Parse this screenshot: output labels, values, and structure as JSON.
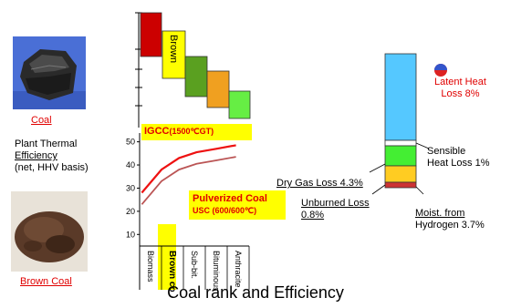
{
  "left_panel": {
    "coal_label": "Coal",
    "efficiency_label_lines": [
      "Plant Thermal",
      "Efficiency",
      "(net, HHV basis)"
    ],
    "brown_coal_label": "Brown Coal"
  },
  "staircase": {
    "brown_label": "Brown",
    "colors": [
      "#cc0000",
      "#ffff00",
      "#5aa020",
      "#f0a020",
      "#66ee44"
    ]
  },
  "chart": {
    "y_ticks": [
      "50",
      "40",
      "30",
      "20",
      "10"
    ],
    "categories": [
      "Biomass",
      "Brown coal",
      "Sub-bit.",
      "Bituminous",
      "Anthracite"
    ],
    "igcc_label": "IGCC",
    "igcc_sub": "(1500℃GT)",
    "pc_label": "Pulverized Coal",
    "pc_sub": "USC (600/600℃)"
  },
  "chart_data": {
    "type": "line",
    "categories": [
      "Biomass",
      "Brown coal",
      "Sub-bit.",
      "Bituminous",
      "Anthracite"
    ],
    "ylim": [
      5,
      53
    ],
    "y_ticks": [
      10,
      20,
      30,
      40,
      50
    ],
    "series": [
      {
        "name": "IGCC (1500℃GT)",
        "color": "#ee1111",
        "x": [
          0.1,
          1.0,
          1.8,
          2.6,
          3.5,
          4.4
        ],
        "values": [
          28,
          38,
          43,
          45.5,
          47,
          48.5
        ]
      },
      {
        "name": "Pulverized Coal USC (600/600℃)",
        "color": "#bb5555",
        "x": [
          0.1,
          1.0,
          1.8,
          2.6,
          3.5,
          4.4
        ],
        "values": [
          23,
          33,
          38,
          40.5,
          42,
          43.5
        ]
      }
    ]
  },
  "loss_bar": {
    "segments": [
      {
        "name": "latent",
        "color": "#55c8ff"
      },
      {
        "name": "sensible",
        "color": "#ffffff"
      },
      {
        "name": "dry-gas",
        "color": "#44ee33"
      },
      {
        "name": "unburned",
        "color": "#ffcc22"
      },
      {
        "name": "moisture",
        "color": "#cc3333"
      }
    ],
    "labels": {
      "latent": [
        "Latent Heat",
        "Loss 8%"
      ],
      "sensible": [
        "Sensible",
        "Heat Loss 1%"
      ],
      "dry_gas": "Dry Gas Loss 4.3%",
      "unburned": [
        "Unburned Loss",
        "0.8%"
      ],
      "moisture": [
        "Moist. from",
        "Hydrogen 3.7%"
      ]
    }
  },
  "caption": "Coal rank and Efficiency"
}
